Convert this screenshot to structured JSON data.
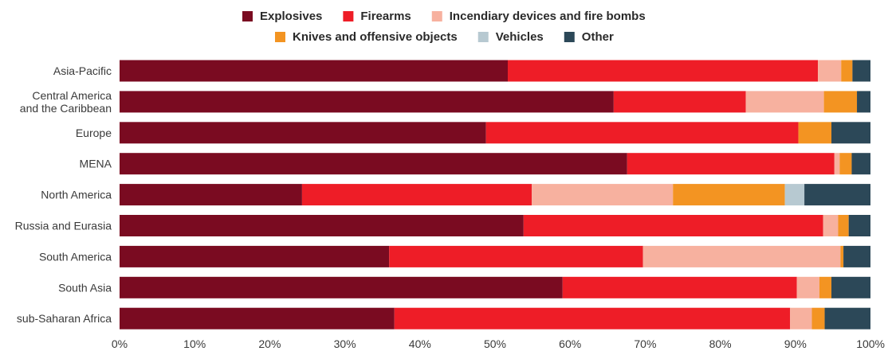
{
  "chart_data": {
    "type": "bar",
    "orientation": "horizontal",
    "stacked": true,
    "percent": true,
    "title": "",
    "xlabel": "",
    "ylabel": "",
    "xlim": [
      0,
      100
    ],
    "legend_position": "top",
    "grid": false,
    "x_ticks": [
      "0%",
      "10%",
      "20%",
      "30%",
      "40%",
      "50%",
      "60%",
      "70%",
      "80%",
      "90%",
      "100%"
    ],
    "categories": [
      [
        "Asia-Pacific"
      ],
      [
        "Central America",
        "and the Caribbean"
      ],
      [
        "Europe"
      ],
      [
        "MENA"
      ],
      [
        "North America"
      ],
      [
        "Russia and Eurasia"
      ],
      [
        "South America"
      ],
      [
        "South Asia"
      ],
      [
        "sub-Saharan Africa"
      ]
    ],
    "series": [
      {
        "name": "Explosives",
        "color": "#7a0b21",
        "values": [
          51.7,
          65.8,
          48.8,
          67.6,
          24.3,
          53.8,
          35.9,
          59.0,
          36.6
        ]
      },
      {
        "name": "Firearms",
        "color": "#ee1d27",
        "values": [
          41.3,
          17.6,
          41.6,
          27.6,
          30.6,
          39.9,
          33.8,
          31.2,
          52.7
        ]
      },
      {
        "name": "Incendiary devices and fire bombs",
        "color": "#f7b19f",
        "values": [
          3.1,
          10.4,
          0.0,
          0.7,
          18.8,
          2.0,
          26.3,
          3.0,
          2.9
        ]
      },
      {
        "name": "Knives and offensive objects",
        "color": "#f39422",
        "values": [
          1.5,
          4.4,
          4.4,
          1.6,
          14.9,
          1.4,
          0.4,
          1.6,
          1.7
        ]
      },
      {
        "name": "Vehicles",
        "color": "#b7c9d1",
        "values": [
          0.0,
          0.0,
          0.0,
          0.0,
          2.6,
          0.0,
          0.0,
          0.0,
          0.0
        ]
      },
      {
        "name": "Other",
        "color": "#2c4858",
        "values": [
          2.4,
          1.8,
          5.2,
          2.5,
          8.8,
          2.9,
          3.6,
          5.2,
          6.1
        ]
      }
    ]
  }
}
